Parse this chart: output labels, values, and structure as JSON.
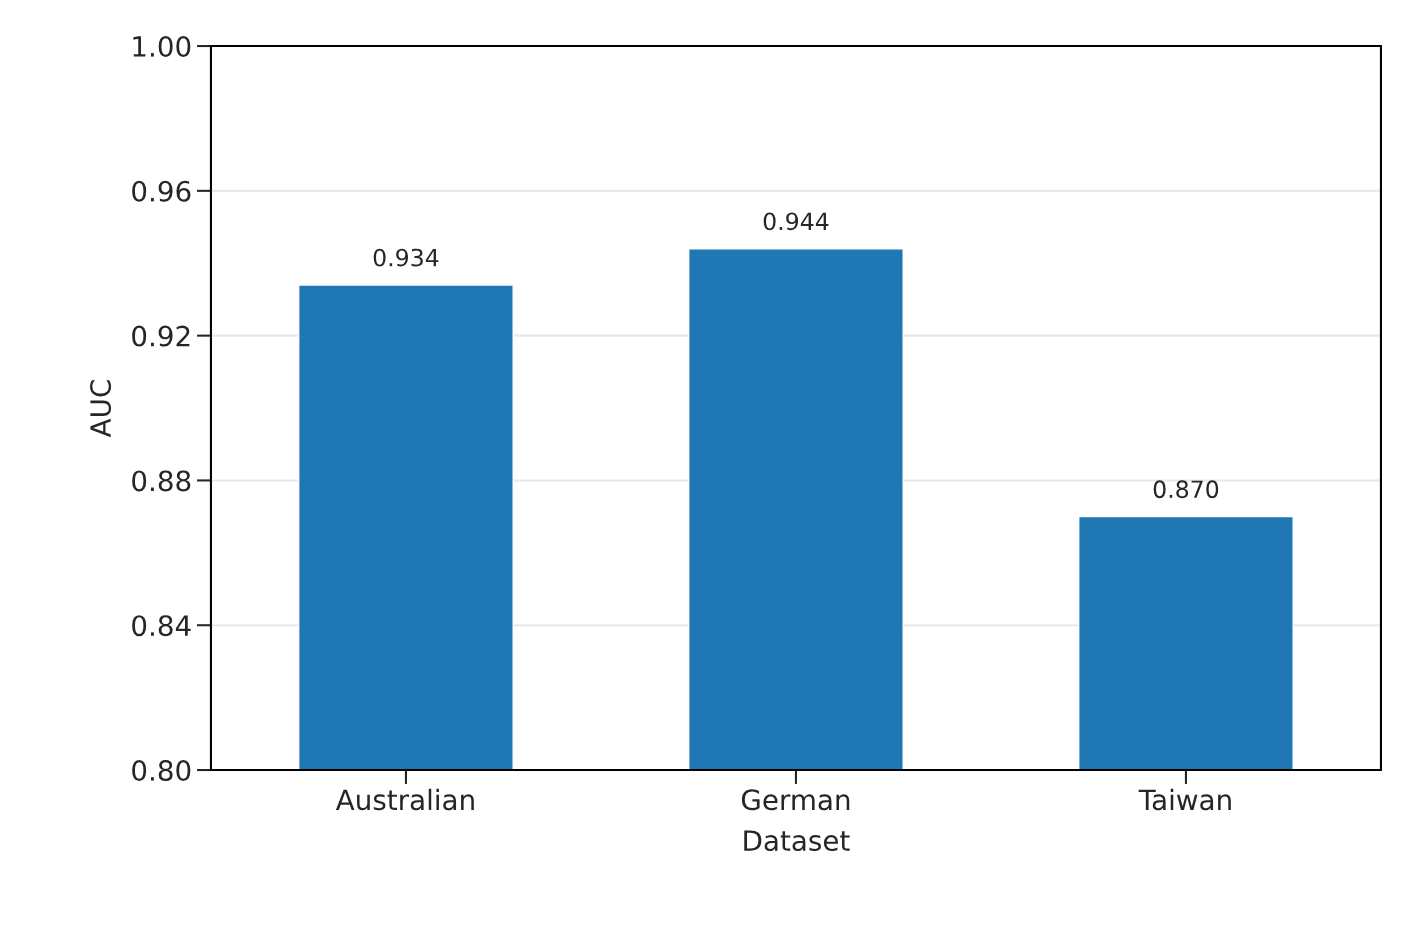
{
  "chart_data": {
    "type": "bar",
    "xlabel": "Dataset",
    "ylabel": "AUC",
    "categories": [
      "Australian",
      "German",
      "Taiwan"
    ],
    "values": [
      0.934,
      0.944,
      0.87
    ],
    "color": "#1f77b4",
    "value_labels": [
      "0.934",
      "0.944",
      "0.870"
    ],
    "ylim": [
      0.8,
      1.0
    ],
    "yticks": [
      {
        "value": 0.8,
        "label": "0.80"
      },
      {
        "value": 0.84,
        "label": "0.84"
      },
      {
        "value": 0.88,
        "label": "0.88"
      },
      {
        "value": 0.92,
        "label": "0.92"
      },
      {
        "value": 0.96,
        "label": "0.96"
      },
      {
        "value": 1.0,
        "label": "1.00"
      }
    ],
    "grid": "y"
  }
}
